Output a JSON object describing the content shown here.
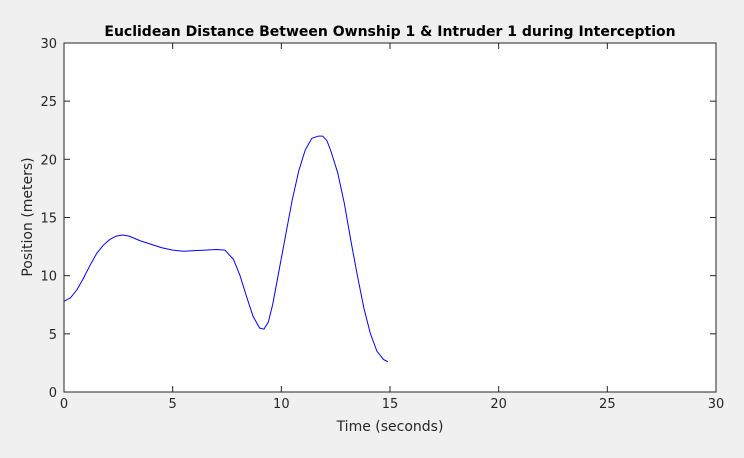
{
  "chart_data": {
    "type": "line",
    "title": "Euclidean Distance Between Ownship 1 & Intruder 1 during Interception",
    "xlabel": "Time (seconds)",
    "ylabel": "Position (meters)",
    "xlim": [
      0,
      30
    ],
    "ylim": [
      0,
      30
    ],
    "xticks": [
      0,
      5,
      10,
      15,
      20,
      25,
      30
    ],
    "yticks": [
      0,
      5,
      10,
      15,
      20,
      25,
      30
    ],
    "xtick_labels": [
      "0",
      "5",
      "10",
      "15",
      "20",
      "25",
      "30"
    ],
    "ytick_labels": [
      "0",
      "5",
      "10",
      "15",
      "20",
      "25",
      "30"
    ],
    "grid": false,
    "legend": "none",
    "colors": {
      "background": "#f0f0f0",
      "axes": "#ffffff",
      "line": "#0000ff"
    },
    "series": [
      {
        "x": [
          0,
          0.3,
          0.6,
          0.9,
          1.2,
          1.5,
          1.8,
          2.1,
          2.4,
          2.7,
          3.0,
          3.5,
          4.0,
          4.5,
          5.0,
          5.5,
          6.0,
          6.5,
          7.0,
          7.4,
          7.8,
          8.1,
          8.4,
          8.7,
          9.0,
          9.2,
          9.4,
          9.6,
          9.9,
          10.2,
          10.5,
          10.8,
          11.1,
          11.4,
          11.7,
          11.9,
          12.1,
          12.3,
          12.6,
          12.9,
          13.2,
          13.5,
          13.8,
          14.1,
          14.4,
          14.7,
          14.9
        ],
        "y": [
          7.8,
          8.1,
          8.8,
          9.8,
          10.9,
          11.9,
          12.6,
          13.1,
          13.4,
          13.5,
          13.4,
          13.0,
          12.7,
          12.4,
          12.2,
          12.1,
          12.15,
          12.2,
          12.25,
          12.2,
          11.4,
          10.0,
          8.2,
          6.5,
          5.5,
          5.4,
          6.0,
          7.5,
          10.5,
          13.5,
          16.5,
          19.0,
          20.8,
          21.8,
          22.0,
          22.0,
          21.6,
          20.6,
          18.8,
          16.2,
          13.0,
          10.0,
          7.2,
          5.0,
          3.5,
          2.8,
          2.6
        ]
      }
    ]
  }
}
